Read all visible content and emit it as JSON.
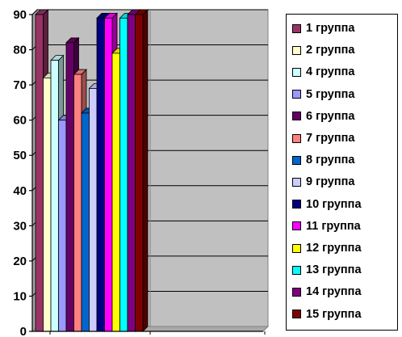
{
  "chart_data": {
    "type": "bar",
    "style": "3d-clustered",
    "ylim": [
      0,
      90
    ],
    "yticks": [
      "0",
      "10",
      "20",
      "30",
      "40",
      "50",
      "60",
      "70",
      "80",
      "90"
    ],
    "grid": true,
    "legend_position": "right",
    "plot_background": "#C0C0C0",
    "series": [
      {
        "name": "1 группа",
        "value": 90,
        "color": "#993366"
      },
      {
        "name": "2 группа",
        "value": 72,
        "color": "#FFFFCC"
      },
      {
        "name": "4 группа",
        "value": 77,
        "color": "#CCFFFF"
      },
      {
        "name": "5 группа",
        "value": 60,
        "color": "#9999FF"
      },
      {
        "name": "6 группа",
        "value": 82,
        "color": "#660066"
      },
      {
        "name": "7 группа",
        "value": 73,
        "color": "#FF8080"
      },
      {
        "name": "8 группа",
        "value": 62,
        "color": "#0066CC"
      },
      {
        "name": "9 группа",
        "value": 69,
        "color": "#CCCCFF"
      },
      {
        "name": "10 группа",
        "value": 89,
        "color": "#000080"
      },
      {
        "name": "11 группа",
        "value": 89,
        "color": "#FF00FF"
      },
      {
        "name": "12 группа",
        "value": 79,
        "color": "#FFFF00"
      },
      {
        "name": "13 группа",
        "value": 89,
        "color": "#00FFFF"
      },
      {
        "name": "14 группа",
        "value": 90,
        "color": "#800080"
      },
      {
        "name": "15 группа",
        "value": 90,
        "color": "#800000"
      }
    ]
  }
}
